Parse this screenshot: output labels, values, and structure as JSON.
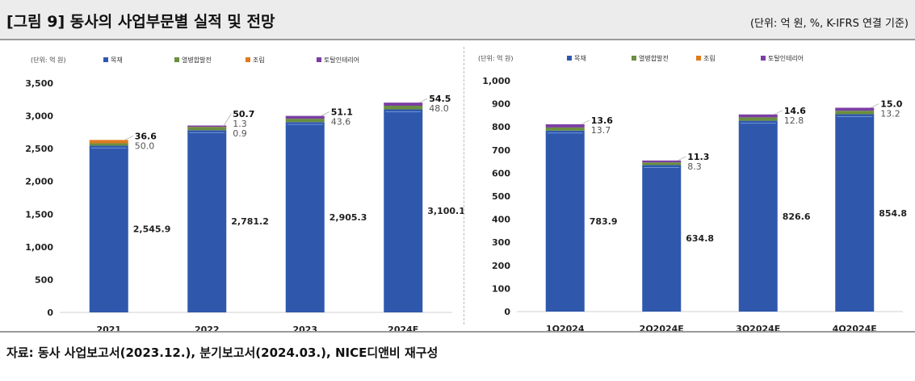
{
  "header": {
    "title": "[그림 9] 동사의 사업부문별 실적 및 전망",
    "unit_note": "(단위: 억 원, %, K-IFRS 연결 기준)"
  },
  "footer": {
    "source": "자료: 동사 사업보고서(2023.12.), 분기보고서(2024.03.), NICE디앤비 재구성"
  },
  "colors": {
    "series_1": "#2f58ad",
    "series_2": "#6b8f3f",
    "series_3": "#e07a1f",
    "series_4": "#7b3fa3"
  },
  "chart_data": [
    {
      "type": "bar",
      "stacked": true,
      "unit_label": "(단위: 억 원)",
      "categories": [
        "2021",
        "2022",
        "2023",
        "2024E"
      ],
      "ylim": [
        0,
        3500
      ],
      "yticks": [
        0,
        500,
        1000,
        1500,
        2000,
        2500,
        3000,
        3500
      ],
      "yticklabels": [
        "0",
        "500",
        "1,000",
        "1,500",
        "2,000",
        "2,500",
        "3,000",
        "3,500"
      ],
      "grid": false,
      "legend_position": "top",
      "series": [
        {
          "name": "목재",
          "values": [
            2545.9,
            2781.2,
            2905.3,
            3100.1
          ],
          "labels": [
            "2,545.9",
            "2,781.2",
            "2,905.3",
            "3,100.1"
          ]
        },
        {
          "name": "열병합발전",
          "values": [
            36.6,
            50.7,
            51.1,
            54.5
          ],
          "labels": [
            "36.6",
            "50.7",
            "51.1",
            "54.5"
          ]
        },
        {
          "name": "조림",
          "values": [
            50.0,
            1.3,
            0,
            0
          ],
          "labels": [
            "50.0",
            "1.3",
            "",
            ""
          ]
        },
        {
          "name": "토탈인테리어",
          "values": [
            0,
            0.9,
            43.6,
            48.0
          ],
          "labels": [
            "",
            "0.9",
            "43.6",
            "48.0"
          ]
        }
      ]
    },
    {
      "type": "bar",
      "stacked": true,
      "unit_label": "(단위: 억 원)",
      "categories": [
        "1Q2024",
        "2Q2024E",
        "3Q2024E",
        "4Q2024E"
      ],
      "ylim": [
        0,
        1000
      ],
      "yticks": [
        0,
        100,
        200,
        300,
        400,
        500,
        600,
        700,
        800,
        900,
        1000
      ],
      "yticklabels": [
        "0",
        "100",
        "200",
        "300",
        "400",
        "500",
        "600",
        "700",
        "800",
        "900",
        "1,000"
      ],
      "grid": false,
      "legend_position": "top",
      "series": [
        {
          "name": "목재",
          "values": [
            783.9,
            634.8,
            826.6,
            854.8
          ],
          "labels": [
            "783.9",
            "634.8",
            "826.6",
            "854.8"
          ]
        },
        {
          "name": "열병합발전",
          "values": [
            13.6,
            11.3,
            14.6,
            15.0
          ],
          "labels": [
            "13.6",
            "11.3",
            "14.6",
            "15.0"
          ]
        },
        {
          "name": "조림",
          "values": [
            0,
            0,
            0,
            0
          ],
          "labels": [
            "",
            "",
            "",
            ""
          ]
        },
        {
          "name": "토탈인테리어",
          "values": [
            13.7,
            8.3,
            12.8,
            13.2
          ],
          "labels": [
            "13.7",
            "8.3",
            "12.8",
            "13.2"
          ]
        }
      ]
    }
  ]
}
